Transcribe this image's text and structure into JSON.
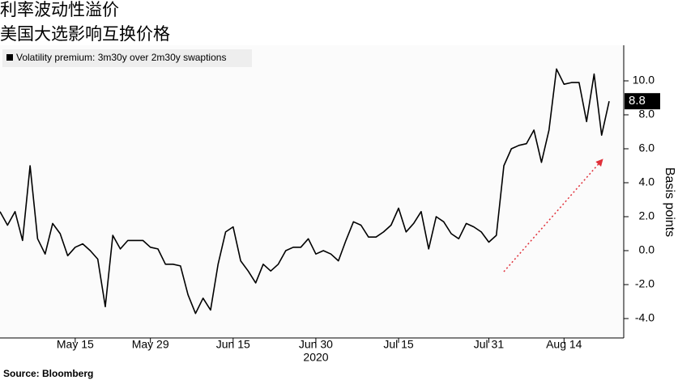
{
  "chart_data": {
    "type": "line",
    "title": "利率波动性溢价",
    "subtitle": "美国大选影响互换价格",
    "ylabel": "Basis points",
    "xlabel": "2020",
    "source": "Source: Bloomberg",
    "categories": [
      null,
      null,
      null,
      null,
      null,
      null,
      null,
      null,
      null,
      null,
      "May 15",
      null,
      null,
      null,
      null,
      null,
      null,
      null,
      null,
      null,
      "May 29",
      null,
      null,
      null,
      null,
      null,
      null,
      null,
      null,
      null,
      null,
      "Jun 15",
      null,
      null,
      null,
      null,
      null,
      null,
      null,
      null,
      null,
      null,
      "Jun 30",
      null,
      null,
      null,
      null,
      null,
      null,
      null,
      null,
      null,
      null,
      "Jul 15",
      null,
      null,
      null,
      null,
      null,
      null,
      null,
      null,
      null,
      null,
      null,
      "Jul 31",
      null,
      null,
      null,
      null,
      null,
      null,
      null,
      null,
      null,
      "Aug 14",
      null,
      null,
      null,
      null,
      null,
      null
    ],
    "series": [
      {
        "name": "Volatility premium: 3m30y over 2m30y swaptions",
        "color": "#000000",
        "values": [
          2.3,
          1.5,
          2.3,
          0.6,
          5.0,
          0.7,
          -0.2,
          1.6,
          1.0,
          -0.3,
          0.2,
          0.4,
          0.0,
          -0.5,
          -3.3,
          0.9,
          0.1,
          0.6,
          0.6,
          0.6,
          0.2,
          0.1,
          -0.8,
          -0.8,
          -0.9,
          -2.6,
          -3.7,
          -2.8,
          -3.5,
          -0.8,
          1.1,
          1.4,
          -0.6,
          -1.2,
          -1.9,
          -0.8,
          -1.2,
          -0.8,
          0.0,
          0.2,
          0.2,
          0.7,
          -0.2,
          0.0,
          -0.2,
          -0.6,
          0.6,
          1.7,
          1.5,
          0.8,
          0.8,
          1.1,
          1.5,
          2.5,
          1.1,
          1.6,
          2.3,
          0.1,
          2.0,
          1.7,
          1.0,
          0.7,
          1.6,
          1.4,
          1.1,
          0.5,
          0.9,
          5.0,
          6.0,
          6.2,
          6.3,
          7.1,
          5.2,
          7.1,
          10.7,
          9.8,
          9.9,
          9.9,
          7.6,
          10.4,
          6.8,
          8.8
        ]
      }
    ],
    "ylim": [
      -5,
      12
    ],
    "yticks": [
      {
        "value": -4,
        "label": "-4.0"
      },
      {
        "value": -2,
        "label": "-2.0"
      },
      {
        "value": 0,
        "label": "0.0"
      },
      {
        "value": 2,
        "label": "2.0"
      },
      {
        "value": 4,
        "label": "4.0"
      },
      {
        "value": 6,
        "label": "6.0"
      },
      {
        "value": 8,
        "label": "8.0"
      },
      {
        "value": 10,
        "label": "10.0"
      }
    ],
    "grid": false,
    "legend": "upper left"
  }
}
